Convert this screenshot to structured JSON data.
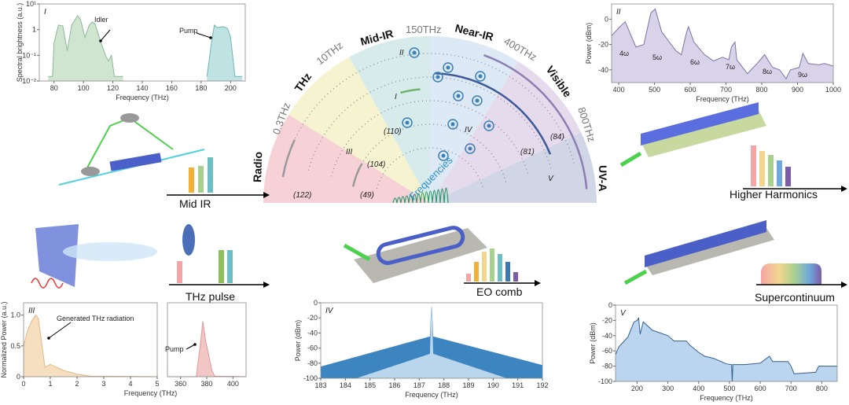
{
  "spectrum": {
    "bands": [
      "Radio",
      "THz",
      "Mid-IR",
      "Near-IR",
      "Visible",
      "UV-A"
    ],
    "band_colors": [
      "#f4c9cf",
      "#f3f1c8",
      "#cfe8e6",
      "#d7e6f3",
      "#e2d5ea",
      "#c9cfe2"
    ],
    "boundaries": [
      "0.3THz",
      "10THz",
      "150THz",
      "400THz",
      "800THz"
    ],
    "center_label": "Frequencies",
    "markers": {
      "I": "I",
      "II": "II",
      "III": "III",
      "IV": "IV",
      "V": "V"
    },
    "refs": [
      "(122)",
      "(49)",
      "(104)",
      "(110)",
      "(81)",
      "(84)"
    ]
  },
  "devices": {
    "mid_ir": {
      "label": "Mid IR",
      "bar_colors": [
        "#f2b134",
        "#a9d18e",
        "#6bbfc4"
      ]
    },
    "higher_harmonics": {
      "label": "Higher Harmonics",
      "bar_colors": [
        "#f4a6a6",
        "#f4d58d",
        "#a9d18e",
        "#6fa8dc",
        "#7b5ea7"
      ]
    },
    "thz_pulse": {
      "label": "THz pulse",
      "bar_colors": [
        "#f4a6a6",
        "#8fbf5a",
        "#6bbfc4"
      ]
    },
    "eo_comb": {
      "label": "EO comb",
      "bar_colors": [
        "#f4a6a6",
        "#f2b134",
        "#f4d58d",
        "#a9d18e",
        "#6bbfc4",
        "#3c78b4",
        "#7b5ea7"
      ]
    },
    "supercontinuum": {
      "label": "Supercontinuum"
    }
  },
  "chart_data": [
    {
      "id": "I",
      "type": "area",
      "panel_label": "I",
      "xlabel": "Frequency (THz)",
      "ylabel": "Spectral brightness (a.u.)",
      "xlim": [
        70,
        210
      ],
      "ylim": [
        0.01,
        10
      ],
      "yscale": "log",
      "xticks": [
        80,
        100,
        120,
        140,
        160,
        180,
        200
      ],
      "yticks": [
        0.01,
        0.1,
        1,
        10
      ],
      "ytick_labels": [
        "10⁻²",
        "10⁻¹",
        "1",
        "10¹"
      ],
      "annotations": [
        "Idler",
        "Pump"
      ],
      "series": [
        {
          "name": "Idler",
          "color": "#cfe5cf",
          "line": "#8cb89a",
          "points": [
            [
              76,
              0.015
            ],
            [
              79,
              0.015
            ],
            [
              80,
              0.3
            ],
            [
              83,
              1.5
            ],
            [
              86,
              1.4
            ],
            [
              89,
              0.15
            ],
            [
              92,
              1.5
            ],
            [
              96,
              3.5
            ],
            [
              98,
              2.5
            ],
            [
              101,
              0.5
            ],
            [
              104,
              1.5
            ],
            [
              106,
              2
            ],
            [
              108,
              1.6
            ],
            [
              112,
              0.3
            ],
            [
              115,
              0.1
            ],
            [
              117,
              0.06
            ],
            [
              119,
              0.1
            ],
            [
              121,
              0.015
            ],
            [
              127,
              0.015
            ]
          ]
        },
        {
          "name": "Pump",
          "color": "#bfe3e3",
          "line": "#6fb5b5",
          "points": [
            [
              184,
              0.015
            ],
            [
              187,
              0.3
            ],
            [
              189,
              1.5
            ],
            [
              191,
              1.2
            ],
            [
              195,
              1.3
            ],
            [
              198,
              1.1
            ],
            [
              200,
              0.5
            ],
            [
              203,
              0.015
            ],
            [
              208,
              0.015
            ]
          ]
        }
      ]
    },
    {
      "id": "II",
      "type": "area",
      "panel_label": "II",
      "xlabel": "Frequency (THz)",
      "ylabel": "Power (dBm)",
      "xlim": [
        380,
        1000
      ],
      "ylim": [
        -50,
        12
      ],
      "xticks": [
        400,
        500,
        600,
        700,
        800,
        900,
        1000
      ],
      "yticks": [
        -40,
        -20,
        0
      ],
      "annotations": [
        "4ω",
        "5ω",
        "6ω",
        "7ω",
        "8ω",
        "9ω"
      ],
      "series": [
        {
          "color": "#d9d3ea",
          "line": "#7d72a8",
          "points": [
            [
              380,
              -13
            ],
            [
              400,
              -7
            ],
            [
              418,
              -2
            ],
            [
              430,
              -10
            ],
            [
              448,
              -22
            ],
            [
              470,
              -20
            ],
            [
              490,
              5
            ],
            [
              502,
              8
            ],
            [
              520,
              -10
            ],
            [
              560,
              -25
            ],
            [
              575,
              -28
            ],
            [
              590,
              -10
            ],
            [
              595,
              -6
            ],
            [
              610,
              -18
            ],
            [
              640,
              -28
            ],
            [
              665,
              -33
            ],
            [
              690,
              -30
            ],
            [
              708,
              -32
            ],
            [
              715,
              -22
            ],
            [
              725,
              -18
            ],
            [
              730,
              -32
            ],
            [
              760,
              -43
            ],
            [
              790,
              -34
            ],
            [
              808,
              -28
            ],
            [
              830,
              -38
            ],
            [
              850,
              -40
            ],
            [
              868,
              -47
            ],
            [
              880,
              -40
            ],
            [
              905,
              -38
            ],
            [
              915,
              -27
            ],
            [
              930,
              -35
            ],
            [
              960,
              -36
            ],
            [
              975,
              -35
            ],
            [
              1000,
              -37
            ]
          ]
        }
      ]
    },
    {
      "id": "III_a",
      "type": "area",
      "panel_label": "III",
      "xlabel": "Frequency (THz)",
      "ylabel": "Normalized Power (a.u.)",
      "xlim": [
        0,
        5
      ],
      "ylim": [
        0,
        1.2
      ],
      "xticks": [
        0,
        1,
        2,
        3,
        4,
        5
      ],
      "yticks": [
        0,
        0.5,
        1.0
      ],
      "ytick_labels": [
        "0",
        "0.5",
        "1.0"
      ],
      "annotations": [
        "Generated THz radiation"
      ],
      "series": [
        {
          "color": "#f6dfbf",
          "line": "#e0b887",
          "points": [
            [
              0,
              0.5
            ],
            [
              0.15,
              0.75
            ],
            [
              0.3,
              0.9
            ],
            [
              0.45,
              1.0
            ],
            [
              0.55,
              0.95
            ],
            [
              0.8,
              0.15
            ],
            [
              1.0,
              0.2
            ],
            [
              1.5,
              0.1
            ],
            [
              2,
              0.04
            ],
            [
              2.5,
              0.01
            ],
            [
              5,
              0
            ]
          ]
        }
      ]
    },
    {
      "id": "III_b",
      "type": "area",
      "xlim": [
        350,
        410
      ],
      "ylim": [
        0,
        1.2
      ],
      "xticks": [
        360,
        380,
        400
      ],
      "annotations": [
        "Pump"
      ],
      "series": [
        {
          "color": "#f3c6c6",
          "line": "#e09a9a",
          "points": [
            [
              350,
              0
            ],
            [
              372,
              0
            ],
            [
              375,
              0.5
            ],
            [
              377,
              0.9
            ],
            [
              379,
              0.6
            ],
            [
              381,
              0.4
            ],
            [
              384,
              0.1
            ],
            [
              386,
              0.01
            ],
            [
              410,
              0
            ]
          ]
        }
      ]
    },
    {
      "id": "IV",
      "type": "area",
      "panel_label": "IV",
      "xlabel": "Frequency (THz)",
      "ylabel": "Power (dBm)",
      "xlim": [
        183,
        192
      ],
      "ylim": [
        -100,
        0
      ],
      "xticks": [
        183,
        184,
        185,
        186,
        187,
        188,
        189,
        190,
        191,
        192
      ],
      "yticks": [
        -100,
        -80,
        -60,
        -40,
        -20,
        0
      ],
      "series": [
        {
          "color": "#3d85c0",
          "line": "#3d85c0",
          "points": [
            [
              183,
              -85
            ],
            [
              187.45,
              -45
            ],
            [
              187.5,
              -5
            ],
            [
              187.55,
              -45
            ],
            [
              192,
              -83
            ]
          ]
        },
        {
          "color": "#b9d6ec",
          "line": "#b9d6ec",
          "points": [
            [
              184.5,
              -100
            ],
            [
              187.45,
              -68
            ],
            [
              187.5,
              -5
            ],
            [
              187.55,
              -68
            ],
            [
              190.5,
              -100
            ]
          ]
        }
      ]
    },
    {
      "id": "V",
      "type": "area",
      "panel_label": "V",
      "xlabel": "Frequency (THz)",
      "ylabel": "Power (dBm)",
      "xlim": [
        130,
        850
      ],
      "ylim": [
        -100,
        0
      ],
      "xticks": [
        200,
        300,
        400,
        500,
        600,
        700,
        800
      ],
      "yticks": [
        -100,
        -80,
        -60,
        -40,
        -20,
        0
      ],
      "series": [
        {
          "color": "#bcd5ee",
          "line": "#355f95",
          "points": [
            [
              130,
              -65
            ],
            [
              140,
              -55
            ],
            [
              170,
              -42
            ],
            [
              190,
              -22
            ],
            [
              200,
              -20
            ],
            [
              205,
              -17
            ],
            [
              210,
              -38
            ],
            [
              220,
              -22
            ],
            [
              250,
              -33
            ],
            [
              300,
              -40
            ],
            [
              320,
              -47
            ],
            [
              360,
              -47
            ],
            [
              370,
              -52
            ],
            [
              400,
              -62
            ],
            [
              420,
              -67
            ],
            [
              450,
              -70
            ],
            [
              490,
              -77
            ],
            [
              507,
              -78
            ],
            [
              509,
              -100
            ],
            [
              511,
              -78
            ],
            [
              550,
              -78
            ],
            [
              600,
              -76
            ],
            [
              630,
              -67
            ],
            [
              640,
              -74
            ],
            [
              690,
              -74
            ],
            [
              700,
              -80
            ],
            [
              710,
              -90
            ],
            [
              780,
              -88
            ],
            [
              790,
              -80
            ],
            [
              850,
              -80
            ]
          ]
        }
      ]
    }
  ]
}
